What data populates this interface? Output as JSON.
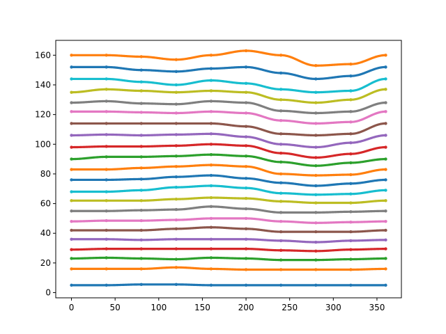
{
  "chart_data": {
    "type": "line",
    "title": "",
    "xlabel": "",
    "ylabel": "",
    "xlim": [
      -18,
      378
    ],
    "ylim": [
      -3.5,
      170
    ],
    "xticks": [
      0,
      50,
      100,
      150,
      200,
      250,
      300,
      350
    ],
    "yticks": [
      0,
      20,
      40,
      60,
      80,
      100,
      120,
      140,
      160
    ],
    "x": [
      0,
      40,
      80,
      120,
      160,
      200,
      240,
      280,
      320,
      360
    ],
    "grid": false,
    "legend": "none",
    "marker": "dot",
    "series": [
      {
        "color": "#1f77b4",
        "values": [
          5,
          5,
          5.5,
          5.5,
          5,
          5,
          5,
          5,
          5,
          5
        ]
      },
      {
        "color": "#ff7f0e",
        "values": [
          16,
          16,
          16,
          17,
          16,
          15.5,
          15.5,
          15.5,
          15.5,
          16
        ]
      },
      {
        "color": "#2ca02c",
        "values": [
          23,
          23.5,
          23,
          22.5,
          23.5,
          23,
          22,
          22,
          22.5,
          23
        ]
      },
      {
        "color": "#d62728",
        "values": [
          29,
          29.5,
          29.5,
          29.5,
          29.5,
          29.5,
          28.5,
          28,
          29,
          29.5
        ]
      },
      {
        "color": "#9467bd",
        "values": [
          36,
          36,
          35.5,
          36,
          36,
          36,
          35,
          34,
          35,
          35.5
        ]
      },
      {
        "color": "#8c564b",
        "values": [
          42,
          42,
          42,
          43,
          44,
          43,
          41,
          41,
          41,
          42
        ]
      },
      {
        "color": "#e377c2",
        "values": [
          48,
          48.5,
          48.5,
          49,
          50,
          50,
          48,
          47,
          47.5,
          48
        ]
      },
      {
        "color": "#7f7f7f",
        "values": [
          55,
          55,
          55.5,
          56,
          58,
          56.5,
          54,
          54,
          54.5,
          55
        ]
      },
      {
        "color": "#bcbd22",
        "values": [
          62,
          62,
          62,
          63,
          64,
          63.5,
          61.5,
          60.5,
          60.5,
          62
        ]
      },
      {
        "color": "#17becf",
        "values": [
          68,
          68,
          69,
          71,
          72,
          70.5,
          67,
          66,
          66.5,
          69
        ]
      },
      {
        "color": "#1f77b4",
        "values": [
          76,
          76,
          76.5,
          78,
          79,
          77,
          74,
          72,
          73.5,
          76
        ]
      },
      {
        "color": "#ff7f0e",
        "values": [
          83,
          83,
          84,
          85,
          86,
          85,
          80,
          79,
          79.5,
          83
        ]
      },
      {
        "color": "#2ca02c",
        "values": [
          90,
          91.5,
          91.5,
          92,
          93,
          92,
          88,
          85.5,
          87.5,
          90
        ]
      },
      {
        "color": "#d62728",
        "values": [
          98,
          98.5,
          98.5,
          99,
          100,
          99,
          94,
          91,
          93.5,
          98
        ]
      },
      {
        "color": "#9467bd",
        "values": [
          106,
          106.5,
          106,
          106.5,
          107,
          105,
          100,
          98,
          101,
          106
        ]
      },
      {
        "color": "#8c564b",
        "values": [
          114,
          114,
          114,
          114,
          114,
          112,
          107,
          106,
          107,
          114
        ]
      },
      {
        "color": "#e377c2",
        "values": [
          122,
          122,
          121.5,
          121,
          122,
          121,
          116,
          114,
          115,
          122
        ]
      },
      {
        "color": "#7f7f7f",
        "values": [
          128,
          129,
          127.5,
          127,
          129,
          128,
          122.5,
          121,
          122,
          128
        ]
      },
      {
        "color": "#bcbd22",
        "values": [
          135,
          137,
          136,
          135,
          136,
          135,
          130,
          128,
          130,
          137
        ]
      },
      {
        "color": "#17becf",
        "values": [
          144,
          144,
          142,
          140,
          143,
          141,
          137,
          135,
          136,
          144
        ]
      },
      {
        "color": "#1f77b4",
        "values": [
          152,
          152,
          150,
          149,
          151,
          152,
          148,
          144,
          146,
          152
        ]
      },
      {
        "color": "#ff7f0e",
        "values": [
          160,
          160,
          159,
          157,
          160,
          163,
          160,
          153,
          154,
          160
        ]
      }
    ]
  }
}
